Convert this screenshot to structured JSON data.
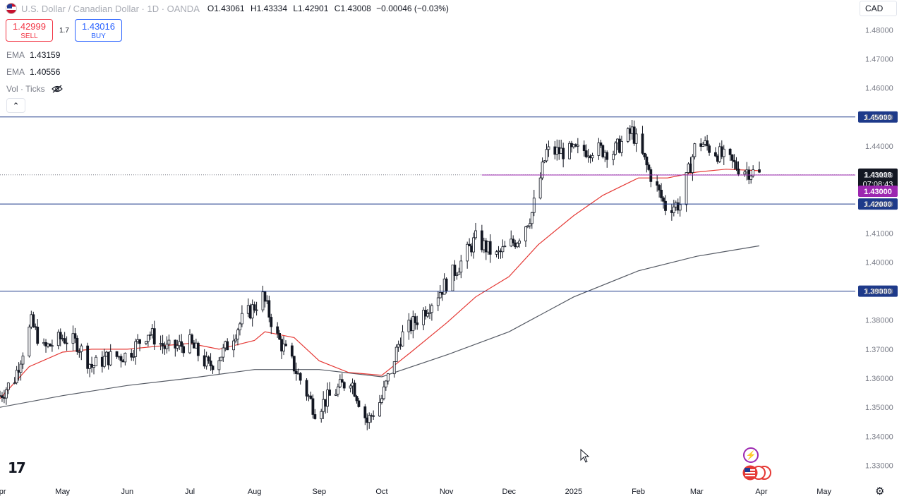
{
  "header": {
    "title": "U.S. Dollar / Canadian Dollar · 1D · OANDA",
    "open_label": "O",
    "open": "1.43061",
    "high_label": "H",
    "high": "1.43334",
    "low_label": "L",
    "low": "1.42901",
    "close_label": "C",
    "close": "1.43008",
    "change": "−0.00046 (−0.03%)"
  },
  "trade": {
    "sell_price": "1.42999",
    "sell_label": "SELL",
    "spread": "1.7",
    "buy_price": "1.43016",
    "buy_label": "BUY"
  },
  "indicators": {
    "ema1_label": "EMA",
    "ema1_value": "1.43159",
    "ema2_label": "EMA",
    "ema2_value": "1.40556",
    "vol_label": "Vol · Ticks"
  },
  "currency_selector": "CAD",
  "logo_text": "17",
  "chart_data": {
    "type": "candlestick",
    "y_ticks": [
      1.33,
      1.34,
      1.35,
      1.36,
      1.37,
      1.38,
      1.39,
      1.4,
      1.41,
      1.42,
      1.43,
      1.44,
      1.45,
      1.46,
      1.47,
      1.48
    ],
    "ylim": [
      1.325,
      1.483
    ],
    "x_ticks": [
      "Apr",
      "May",
      "Jun",
      "Jul",
      "Aug",
      "Sep",
      "Oct",
      "Nov",
      "Dec",
      "2025",
      "Feb",
      "Mar",
      "Apr",
      "May"
    ],
    "xlim": [
      "2024-04-01",
      "2025-05-16"
    ],
    "horizontal_lines": [
      {
        "value": 1.45,
        "label": "1.45000",
        "color": "#1e3a8a"
      },
      {
        "value": 1.42,
        "label": "1.42000",
        "color": "#1e3a8a"
      },
      {
        "value": 1.39,
        "label": "1.39000",
        "color": "#1e3a8a"
      }
    ],
    "alert_line": {
      "value": 1.43,
      "label": "1.43000",
      "color": "#9c27b0",
      "start": "2024-11-18"
    },
    "current_price": {
      "value": 1.43008,
      "label": "1.43008",
      "countdown": "07:08:43",
      "color": "#131722"
    },
    "ema_fast": {
      "color": "#e53935",
      "points": [
        [
          "2024-04-01",
          1.353
        ],
        [
          "2024-04-15",
          1.364
        ],
        [
          "2024-05-01",
          1.369
        ],
        [
          "2024-05-15",
          1.37
        ],
        [
          "2024-06-01",
          1.37
        ],
        [
          "2024-06-15",
          1.371
        ],
        [
          "2024-07-01",
          1.372
        ],
        [
          "2024-07-15",
          1.37
        ],
        [
          "2024-08-01",
          1.373
        ],
        [
          "2024-08-06",
          1.376
        ],
        [
          "2024-08-20",
          1.374
        ],
        [
          "2024-09-01",
          1.366
        ],
        [
          "2024-09-15",
          1.362
        ],
        [
          "2024-10-01",
          1.361
        ],
        [
          "2024-10-15",
          1.369
        ],
        [
          "2024-11-01",
          1.379
        ],
        [
          "2024-11-15",
          1.388
        ],
        [
          "2024-12-01",
          1.395
        ],
        [
          "2024-12-15",
          1.406
        ],
        [
          "2025-01-01",
          1.416
        ],
        [
          "2025-01-15",
          1.423
        ],
        [
          "2025-02-01",
          1.429
        ],
        [
          "2025-02-15",
          1.429
        ],
        [
          "2025-03-01",
          1.431
        ],
        [
          "2025-03-15",
          1.432
        ],
        [
          "2025-03-31",
          1.4315
        ]
      ]
    },
    "ema_slow": {
      "color": "#555a64",
      "points": [
        [
          "2024-04-01",
          1.35
        ],
        [
          "2024-05-01",
          1.354
        ],
        [
          "2024-06-01",
          1.3575
        ],
        [
          "2024-07-01",
          1.36
        ],
        [
          "2024-08-01",
          1.363
        ],
        [
          "2024-09-01",
          1.363
        ],
        [
          "2024-10-01",
          1.3605
        ],
        [
          "2024-11-01",
          1.368
        ],
        [
          "2024-12-01",
          1.376
        ],
        [
          "2025-01-01",
          1.388
        ],
        [
          "2025-02-01",
          1.397
        ],
        [
          "2025-03-01",
          1.402
        ],
        [
          "2025-03-31",
          1.4056
        ]
      ]
    },
    "candles_anchor": [
      [
        "2024-04-01",
        1.354
      ],
      [
        "2024-04-08",
        1.36
      ],
      [
        "2024-04-16",
        1.379
      ],
      [
        "2024-04-22",
        1.37
      ],
      [
        "2024-05-01",
        1.374
      ],
      [
        "2024-05-08",
        1.372
      ],
      [
        "2024-05-15",
        1.364
      ],
      [
        "2024-05-22",
        1.367
      ],
      [
        "2024-06-01",
        1.368
      ],
      [
        "2024-06-11",
        1.376
      ],
      [
        "2024-06-20",
        1.37
      ],
      [
        "2024-07-01",
        1.372
      ],
      [
        "2024-07-10",
        1.364
      ],
      [
        "2024-07-17",
        1.369
      ],
      [
        "2024-07-26",
        1.38
      ],
      [
        "2024-08-05",
        1.388
      ],
      [
        "2024-08-12",
        1.374
      ],
      [
        "2024-08-20",
        1.364
      ],
      [
        "2024-08-30",
        1.349
      ],
      [
        "2024-09-08",
        1.355
      ],
      [
        "2024-09-16",
        1.36
      ],
      [
        "2024-09-24",
        1.345
      ],
      [
        "2024-10-01",
        1.353
      ],
      [
        "2024-10-10",
        1.374
      ],
      [
        "2024-10-20",
        1.382
      ],
      [
        "2024-10-31",
        1.392
      ],
      [
        "2024-11-08",
        1.4
      ],
      [
        "2024-11-15",
        1.408
      ],
      [
        "2024-11-25",
        1.402
      ],
      [
        "2024-12-05",
        1.408
      ],
      [
        "2024-12-12",
        1.417
      ],
      [
        "2024-12-19",
        1.438
      ],
      [
        "2025-01-01",
        1.438
      ],
      [
        "2025-01-10",
        1.439
      ],
      [
        "2025-01-20",
        1.438
      ],
      [
        "2025-01-29",
        1.445
      ],
      [
        "2025-02-05",
        1.433
      ],
      [
        "2025-02-14",
        1.419
      ],
      [
        "2025-02-21",
        1.42
      ],
      [
        "2025-03-01",
        1.442
      ],
      [
        "2025-03-10",
        1.438
      ],
      [
        "2025-03-20",
        1.433
      ],
      [
        "2025-03-31",
        1.4301
      ]
    ]
  }
}
